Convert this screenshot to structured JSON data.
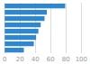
{
  "chart_data": {
    "type": "bar",
    "orientation": "horizontal",
    "categories": [
      null,
      null,
      null,
      null,
      null,
      null,
      null,
      null
    ],
    "values": [
      79,
      55,
      52,
      47,
      44,
      41,
      38,
      25
    ],
    "color": "#2f86d1",
    "xlim": [
      0,
      100
    ],
    "xticks": [
      0,
      20,
      40,
      60,
      80,
      100
    ],
    "grid": true,
    "tick_labels": "x"
  }
}
